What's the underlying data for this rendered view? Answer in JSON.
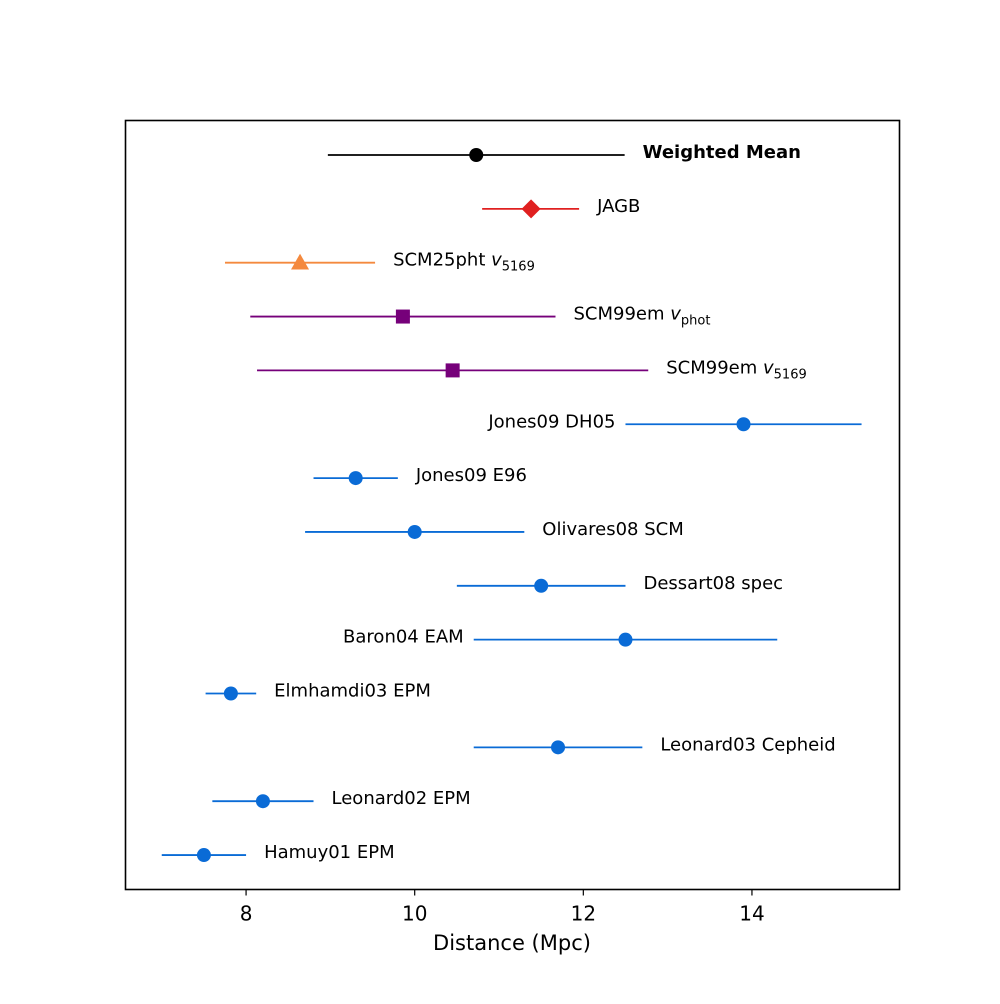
{
  "chart_data": {
    "type": "scatter",
    "subtype": "forest-plot-with-horizontal-error-bars",
    "xlabel": "Distance (Mpc)",
    "ylabel": "",
    "title": "",
    "xlim": [
      6.57,
      15.75
    ],
    "xticks": [
      8,
      10,
      12,
      14
    ],
    "xtick_labels": [
      "8",
      "10",
      "12",
      "14"
    ],
    "yticks_visible": false,
    "grid": false,
    "legend": "none (points labelled inline)",
    "points": [
      {
        "label": "Weighted Mean",
        "label_bold": true,
        "label_side": "right",
        "value": 10.73,
        "err_low": 8.97,
        "err_high": 12.49,
        "marker": "circle",
        "color": "#000000"
      },
      {
        "label": "JAGB",
        "label_side": "right",
        "value": 11.38,
        "err_low": 10.8,
        "err_high": 11.95,
        "marker": "diamond",
        "color": "#e02020"
      },
      {
        "label": "SCM25pht ",
        "label_sub": "5169",
        "label_side": "right",
        "value": 8.64,
        "err_low": 7.75,
        "err_high": 9.53,
        "marker": "triangle",
        "color": "#f4893e"
      },
      {
        "label": "SCM99em ",
        "label_sub": "phot",
        "label_side": "right",
        "value": 9.86,
        "err_low": 8.05,
        "err_high": 11.67,
        "marker": "square",
        "color": "#76007a"
      },
      {
        "label": "SCM99em ",
        "label_sub": "5169",
        "label_side": "right",
        "value": 10.45,
        "err_low": 8.13,
        "err_high": 12.77,
        "marker": "square",
        "color": "#76007a"
      },
      {
        "label": "Jones09 DH05",
        "label_side": "left",
        "value": 13.9,
        "err_low": 12.5,
        "err_high": 15.3,
        "marker": "circle",
        "color": "#0a6bd6"
      },
      {
        "label": "Jones09 E96",
        "label_side": "right",
        "value": 9.3,
        "err_low": 8.8,
        "err_high": 9.8,
        "marker": "circle",
        "color": "#0a6bd6"
      },
      {
        "label": "Olivares08 SCM",
        "label_side": "right",
        "value": 10.0,
        "err_low": 8.7,
        "err_high": 11.3,
        "marker": "circle",
        "color": "#0a6bd6"
      },
      {
        "label": "Dessart08 spec",
        "label_side": "right",
        "value": 11.5,
        "err_low": 10.5,
        "err_high": 12.5,
        "marker": "circle",
        "color": "#0a6bd6"
      },
      {
        "label": "Baron04 EAM",
        "label_side": "left",
        "value": 12.5,
        "err_low": 10.7,
        "err_high": 14.3,
        "marker": "circle",
        "color": "#0a6bd6"
      },
      {
        "label": "Elmhamdi03 EPM",
        "label_side": "right",
        "value": 7.82,
        "err_low": 7.52,
        "err_high": 8.12,
        "marker": "circle",
        "color": "#0a6bd6"
      },
      {
        "label": "Leonard03 Cepheid",
        "label_side": "right",
        "value": 11.7,
        "err_low": 10.7,
        "err_high": 12.7,
        "marker": "circle",
        "color": "#0a6bd6"
      },
      {
        "label": "Leonard02 EPM",
        "label_side": "right",
        "value": 8.2,
        "err_low": 7.6,
        "err_high": 8.8,
        "marker": "circle",
        "color": "#0a6bd6"
      },
      {
        "label": "Hamuy01 EPM",
        "label_side": "right",
        "value": 7.5,
        "err_low": 7.0,
        "err_high": 8.0,
        "marker": "circle",
        "color": "#0a6bd6"
      }
    ]
  }
}
